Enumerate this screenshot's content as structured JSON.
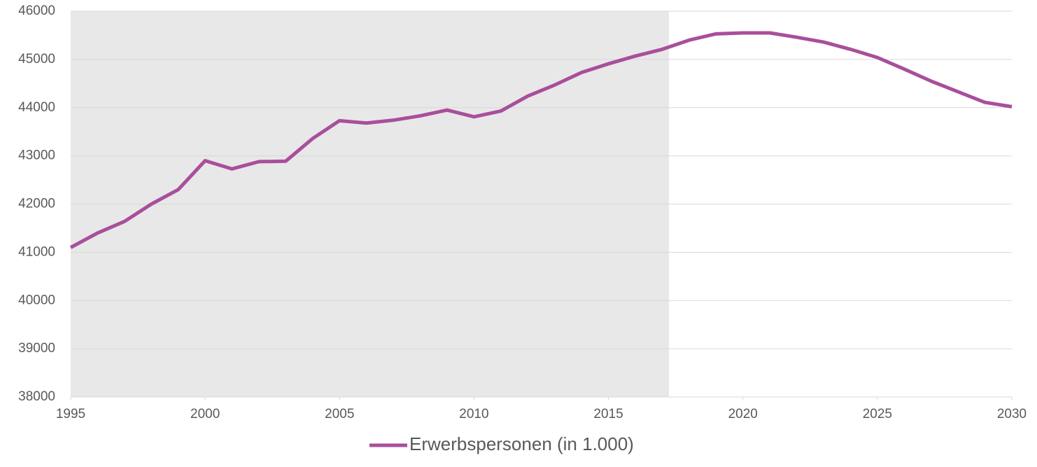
{
  "chart_data": {
    "type": "line",
    "x": [
      1995,
      1996,
      1997,
      1998,
      1999,
      2000,
      2001,
      2002,
      2003,
      2004,
      2005,
      2006,
      2007,
      2008,
      2009,
      2010,
      2011,
      2012,
      2013,
      2014,
      2015,
      2016,
      2017,
      2018,
      2019,
      2020,
      2021,
      2022,
      2023,
      2024,
      2025,
      2026,
      2027,
      2028,
      2029,
      2030
    ],
    "series": [
      {
        "name": "Erwerbspersonen (in 1.000)",
        "color": "#a84f9b",
        "values": [
          41100,
          41400,
          41640,
          42000,
          42300,
          42900,
          42730,
          42880,
          42890,
          43360,
          43730,
          43680,
          43740,
          43830,
          43950,
          43810,
          43930,
          44240,
          44470,
          44730,
          44910,
          45070,
          45210,
          45400,
          45530,
          45550,
          45550,
          45460,
          45360,
          45210,
          45040,
          44800,
          44550,
          44330,
          44110,
          44020
        ]
      }
    ],
    "xlim": [
      1995,
      2030
    ],
    "xticks": [
      1995,
      2000,
      2005,
      2010,
      2015,
      2020,
      2025,
      2030
    ],
    "ylim": [
      38000,
      46000
    ],
    "yticks": [
      38000,
      39000,
      40000,
      41000,
      42000,
      43000,
      44000,
      45000,
      46000
    ],
    "grid": true,
    "legend": "bottom",
    "highlight": {
      "xlim": [
        1995,
        2017.25
      ],
      "color": "#e8e8e8"
    }
  }
}
